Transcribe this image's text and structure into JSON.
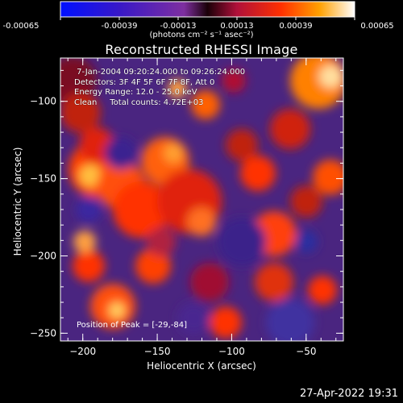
{
  "colorbar": {
    "ticks": [
      "-0.00065",
      "-0.00039",
      "-0.00013",
      "0.00013",
      "0.00039",
      "0.00065"
    ],
    "units_label": "(photons cm⁻² s⁻¹ asec⁻²)",
    "colors": [
      "#0010ff",
      "#5a1fa8",
      "#7e2fa0",
      "#b0103a",
      "#ff3000",
      "#ff9a00",
      "#ffffff"
    ]
  },
  "plot": {
    "title": "Reconstructed RHESSI Image",
    "xlabel": "Heliocentric X (arcsec)",
    "ylabel": "Heliocentric Y (arcsec)",
    "x_ticks": [
      "−200",
      "−150",
      "−100",
      "−50"
    ],
    "x_values": [
      -200,
      -150,
      -100,
      -50
    ],
    "y_ticks": [
      "−100",
      "−150",
      "−200",
      "−250"
    ],
    "y_values": [
      -100,
      -150,
      -200,
      -250
    ],
    "xlim": [
      -215,
      -25
    ],
    "ylim": [
      -255,
      -72
    ]
  },
  "info": {
    "time_range": " 7-Jan-2004 09:20:24.000 to 09:26:24.000",
    "detectors": "Detectors: 3F 4F 5F 6F 7F 8F, Att 0",
    "energy": "Energy Range: 12.0 - 25.0 keV",
    "clean": "Clean     Total counts: 4.72E+03",
    "peak": "Position of Peak = [-29,-84]"
  },
  "timestamp": "27-Apr-2022 19:31"
}
